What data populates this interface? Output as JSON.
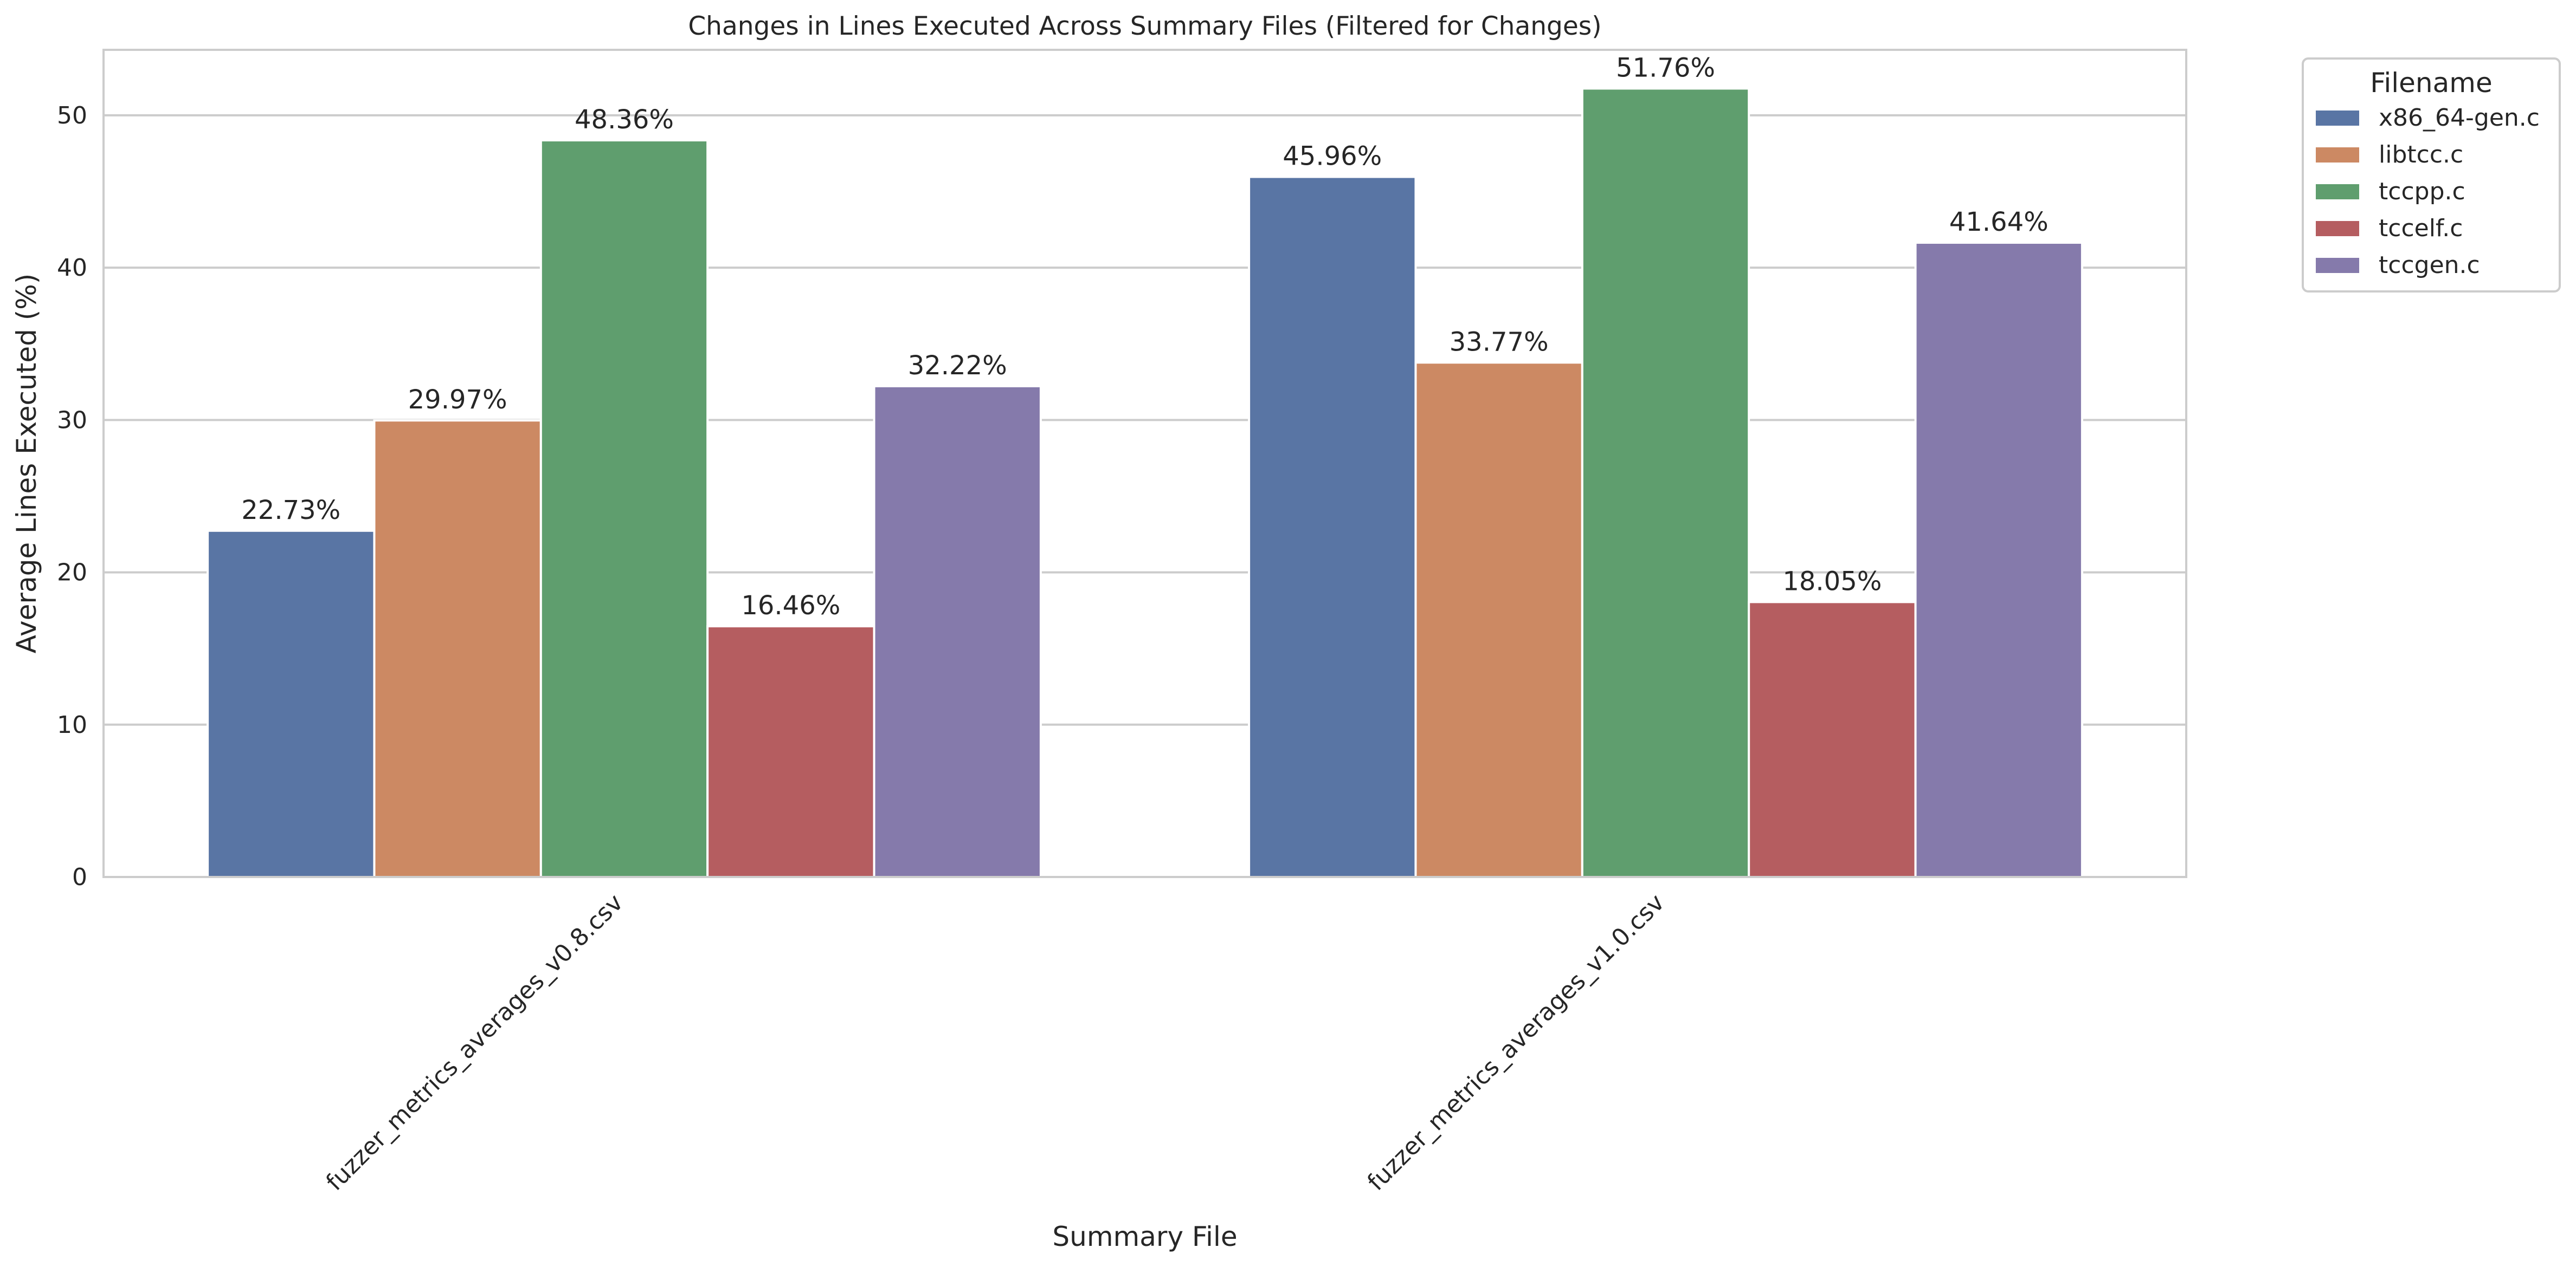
{
  "chart_data": {
    "type": "bar",
    "title": "Changes in Lines Executed Across Summary Files (Filtered for Changes)",
    "xlabel": "Summary File",
    "ylabel": "Average Lines Executed (%)",
    "categories": [
      "fuzzer_metrics_averages_v0.8.csv",
      "fuzzer_metrics_averages_v1.0.csv"
    ],
    "series": [
      {
        "name": "x86_64-gen.c",
        "values": [
          22.73,
          45.96
        ],
        "labels": [
          "22.73%",
          "45.96%"
        ],
        "color": "#5975a4"
      },
      {
        "name": "libtcc.c",
        "values": [
          29.97,
          33.77
        ],
        "labels": [
          "29.97%",
          "33.77%"
        ],
        "color": "#cc8963"
      },
      {
        "name": "tccpp.c",
        "values": [
          48.36,
          51.76
        ],
        "labels": [
          "48.36%",
          "51.76%"
        ],
        "color": "#5f9e6e"
      },
      {
        "name": "tccelf.c",
        "values": [
          16.46,
          18.05
        ],
        "labels": [
          "16.46%",
          "18.05%"
        ],
        "color": "#b55d60"
      },
      {
        "name": "tccgen.c",
        "values": [
          32.22,
          41.64
        ],
        "labels": [
          "32.22%",
          "41.64%"
        ],
        "color": "#857aab"
      }
    ],
    "ylim": [
      0,
      54.3
    ],
    "yticks": [
      0,
      10,
      20,
      30,
      40,
      50
    ],
    "ytick_labels": [
      "0",
      "10",
      "20",
      "30",
      "40",
      "50"
    ],
    "grid": true,
    "legend": {
      "title": "Filename",
      "placement": "outside top-right"
    }
  }
}
